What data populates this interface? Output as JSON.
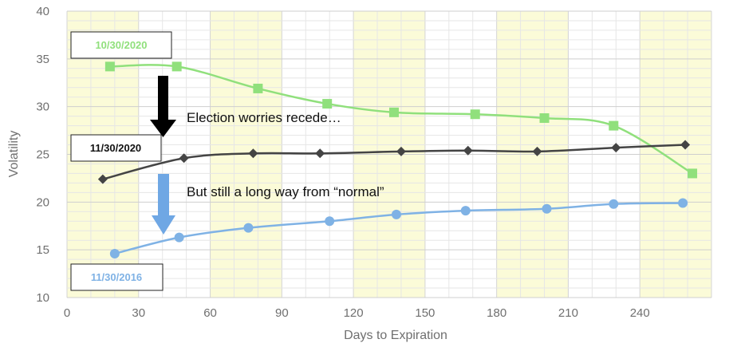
{
  "chart_data": {
    "type": "line",
    "title": "",
    "xlabel": "Days to Expiration",
    "ylabel": "Volatility",
    "xlim": [
      0,
      270
    ],
    "ylim": [
      10,
      40
    ],
    "x_ticks": [
      0,
      30,
      60,
      90,
      120,
      150,
      180,
      210,
      240
    ],
    "y_ticks": [
      10,
      15,
      20,
      25,
      30,
      35,
      40
    ],
    "grid": true,
    "shaded_x_bands": [
      [
        0,
        30
      ],
      [
        60,
        90
      ],
      [
        120,
        150
      ],
      [
        180,
        210
      ],
      [
        240,
        270
      ]
    ],
    "band_color": "#fbfbd8",
    "series": [
      {
        "name": "10/30/2020",
        "color": "#90e07c",
        "marker": "square",
        "x": [
          18,
          46,
          80,
          109,
          137,
          171,
          200,
          229,
          262
        ],
        "y": [
          34.2,
          34.2,
          31.9,
          30.3,
          29.4,
          29.2,
          28.8,
          28.0,
          23.0
        ]
      },
      {
        "name": "11/30/2020",
        "color": "#444444",
        "marker": "diamond",
        "x": [
          15,
          49,
          78,
          106,
          140,
          168,
          197,
          230,
          259
        ],
        "y": [
          22.4,
          24.6,
          25.1,
          25.1,
          25.3,
          25.4,
          25.3,
          25.7,
          26.0
        ]
      },
      {
        "name": "11/30/2016",
        "color": "#7fb2e5",
        "marker": "circle",
        "x": [
          20,
          47,
          76,
          110,
          138,
          167,
          201,
          229,
          258
        ],
        "y": [
          14.6,
          16.3,
          17.3,
          18.0,
          18.7,
          19.1,
          19.3,
          19.8,
          19.9
        ]
      }
    ],
    "annotations": [
      "Election worries recede…",
      "But still a long way from “normal”"
    ]
  }
}
